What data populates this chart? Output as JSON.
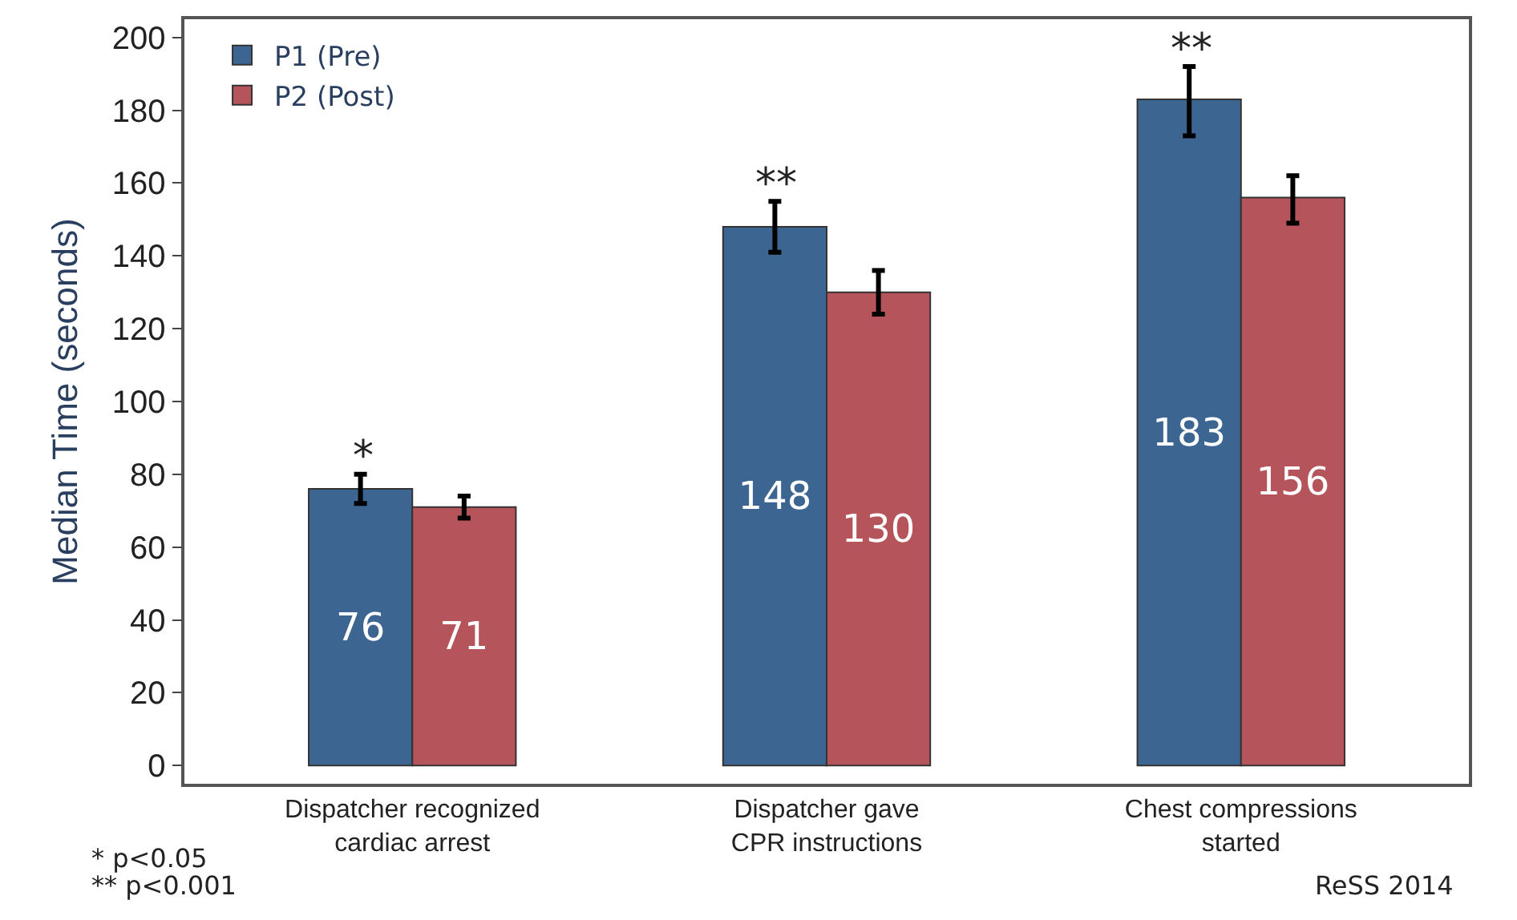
{
  "chart_data": {
    "type": "bar",
    "ylabel": "Median Time (seconds)",
    "categories": [
      "Dispatcher recognized\ncardiac arrest",
      "Dispatcher gave\nCPR instructions",
      "Chest compressions\nstarted"
    ],
    "series": [
      {
        "name": "P1 (Pre)",
        "color": "#3d6592",
        "values": [
          76,
          148,
          183
        ],
        "errors": [
          [
            72,
            80
          ],
          [
            141,
            155
          ],
          [
            173,
            192
          ]
        ]
      },
      {
        "name": "P2 (Post)",
        "color": "#b5545a",
        "values": [
          71,
          130,
          156
        ],
        "errors": [
          [
            68,
            74
          ],
          [
            124,
            136
          ],
          [
            149,
            162
          ]
        ]
      }
    ],
    "data_labels": true,
    "ylim": [
      -5,
      205
    ],
    "yticks": [
      0,
      20,
      40,
      60,
      80,
      100,
      120,
      140,
      160,
      180,
      200
    ],
    "legend": "top left",
    "annotations": [
      "*",
      "**",
      "**",
      "* p<0.05",
      "** p<0.001",
      "ReSS 2014"
    ]
  }
}
